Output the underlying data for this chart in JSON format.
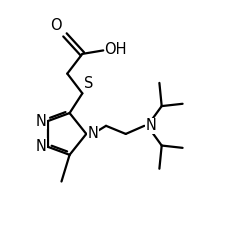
{
  "bg_color": "#ffffff",
  "line_color": "#000000",
  "line_width": 1.6,
  "font_size": 10.5,
  "xlim": [
    0,
    10
  ],
  "ylim": [
    0,
    10.5
  ]
}
